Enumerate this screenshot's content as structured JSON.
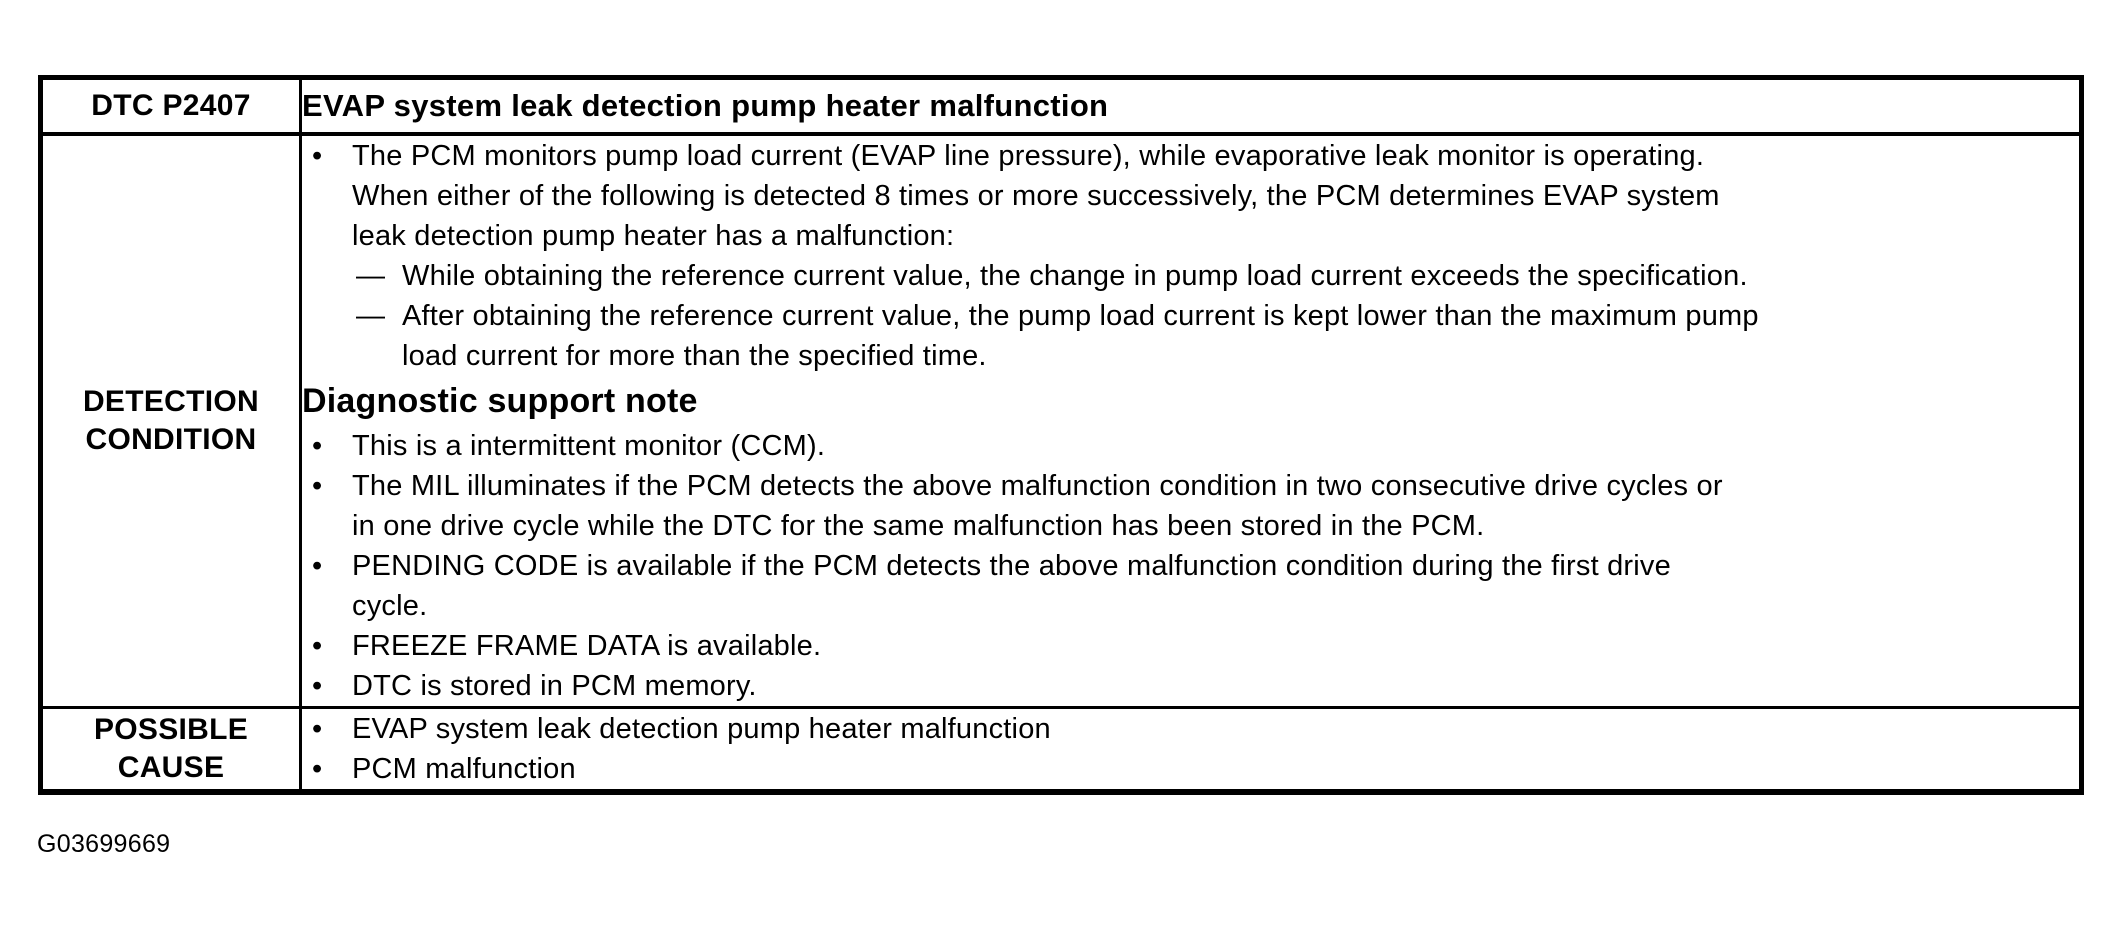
{
  "markers": {
    "bullet": "•",
    "dash": "—"
  },
  "table": {
    "header": {
      "code": "DTC P2407",
      "title": "EVAP system leak detection pump heater malfunction"
    },
    "detection": {
      "label": "DETECTION\nCONDITION",
      "intro_bullet": "The PCM monitors pump load current (EVAP line pressure), while evaporative leak monitor is operating.\nWhen either of the following is detected 8 times or more successively, the PCM determines EVAP system\nleak detection pump heater has a malfunction:",
      "dash_items": [
        "While obtaining the reference current value, the change in pump load current exceeds the specification.",
        "After obtaining the reference current value, the pump load current is kept lower than the maximum pump\nload current for more than the specified time."
      ],
      "note_heading": "Diagnostic support note",
      "note_bullets": [
        "This is a intermittent monitor (CCM).",
        "The MIL illuminates if the PCM detects the above malfunction condition in two consecutive drive cycles or\nin one drive cycle while the DTC for the same malfunction has been stored in the PCM.",
        "PENDING CODE is available if the PCM detects the above malfunction condition during the first drive\ncycle.",
        "FREEZE FRAME DATA is available.",
        "DTC is stored in PCM memory."
      ]
    },
    "possible_cause": {
      "label": "POSSIBLE\nCAUSE",
      "bullets": [
        "EVAP system leak detection pump heater malfunction",
        "PCM malfunction"
      ]
    }
  },
  "footer": {
    "figure_id": "G03699669"
  }
}
